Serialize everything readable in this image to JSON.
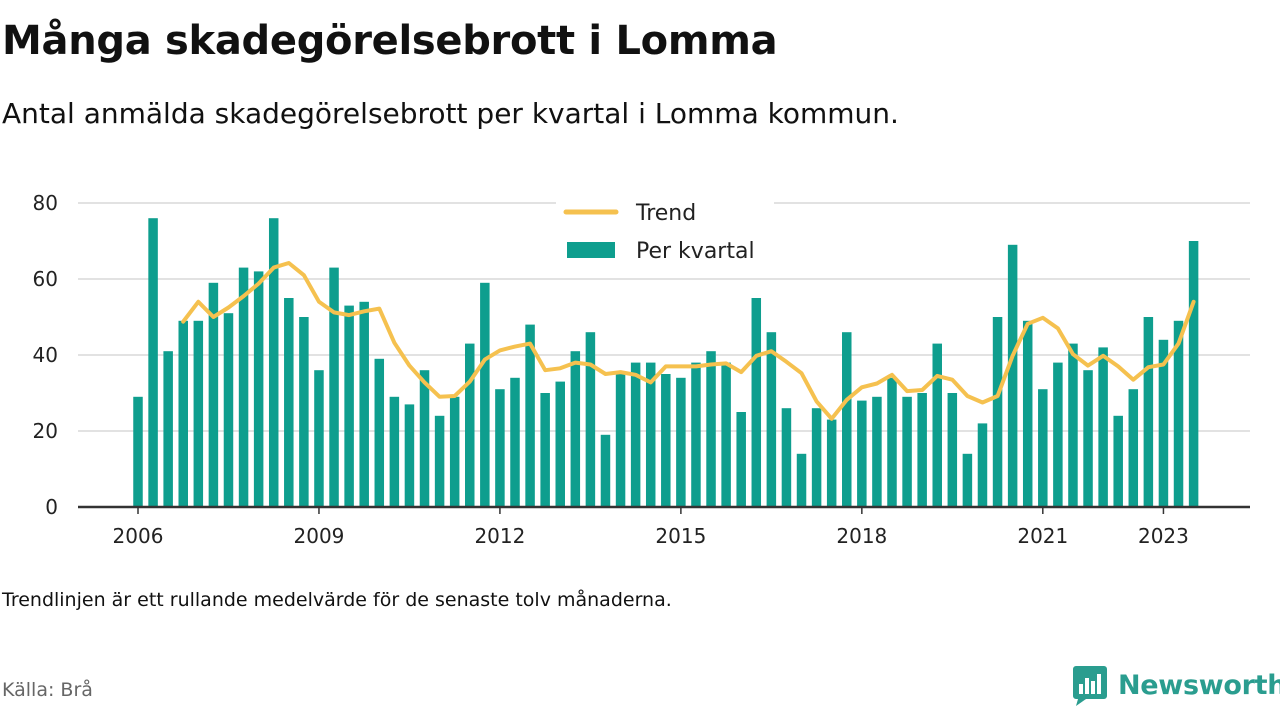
{
  "header": {
    "title": "Många skadegörelsebrott i Lomma",
    "subtitle": "Antal anmälda skadegörelsebrott per kvartal i Lomma kommun."
  },
  "footer": {
    "note": "Trendlinjen är ett rullande medelvärde för de senaste tolv månaderna.",
    "source": "Källa: Brå",
    "brand": "Newsworthy"
  },
  "colors": {
    "bars": "#0e9e8e",
    "trend": "#f5c14f",
    "grid": "#d9d9d9",
    "axis": "#333333",
    "brand": "#2a9d8f"
  },
  "icons": {
    "brand_logo": "newsworthy-logo-icon"
  },
  "chart_data": {
    "type": "bar",
    "title": "",
    "xlabel": "",
    "ylabel": "",
    "ylim": [
      0,
      80
    ],
    "yticks": [
      "0",
      "20",
      "40",
      "60",
      "80"
    ],
    "xticks": [
      "2006",
      "2009",
      "2012",
      "2015",
      "2018",
      "2021",
      "2023"
    ],
    "grid": true,
    "legend_position": "top-center",
    "categories": [
      "2006 Q1",
      "2006 Q2",
      "2006 Q3",
      "2006 Q4",
      "2007 Q1",
      "2007 Q2",
      "2007 Q3",
      "2007 Q4",
      "2008 Q1",
      "2008 Q2",
      "2008 Q3",
      "2008 Q4",
      "2009 Q1",
      "2009 Q2",
      "2009 Q3",
      "2009 Q4",
      "2010 Q1",
      "2010 Q2",
      "2010 Q3",
      "2010 Q4",
      "2011 Q1",
      "2011 Q2",
      "2011 Q3",
      "2011 Q4",
      "2012 Q1",
      "2012 Q2",
      "2012 Q3",
      "2012 Q4",
      "2013 Q1",
      "2013 Q2",
      "2013 Q3",
      "2013 Q4",
      "2014 Q1",
      "2014 Q2",
      "2014 Q3",
      "2014 Q4",
      "2015 Q1",
      "2015 Q2",
      "2015 Q3",
      "2015 Q4",
      "2016 Q1",
      "2016 Q2",
      "2016 Q3",
      "2016 Q4",
      "2017 Q1",
      "2017 Q2",
      "2017 Q3",
      "2017 Q4",
      "2018 Q1",
      "2018 Q2",
      "2018 Q3",
      "2018 Q4",
      "2019 Q1",
      "2019 Q2",
      "2019 Q3",
      "2019 Q4",
      "2020 Q1",
      "2020 Q2",
      "2020 Q3",
      "2020 Q4",
      "2021 Q1",
      "2021 Q2",
      "2021 Q3",
      "2021 Q4",
      "2022 Q1",
      "2022 Q2",
      "2022 Q3",
      "2022 Q4",
      "2023 Q1",
      "2023 Q2",
      "2023 Q3"
    ],
    "series": [
      {
        "name": "Per kvartal",
        "type": "bar",
        "values": [
          29,
          76,
          41,
          49,
          49,
          59,
          51,
          63,
          62,
          76,
          55,
          50,
          36,
          63,
          53,
          54,
          39,
          29,
          27,
          36,
          24,
          29,
          43,
          59,
          31,
          34,
          48,
          30,
          33,
          41,
          46,
          19,
          35,
          38,
          38,
          35,
          34,
          38,
          41,
          38,
          25,
          55,
          46,
          26,
          14,
          26,
          23,
          46,
          28,
          29,
          34,
          29,
          30,
          43,
          30,
          14,
          22,
          50,
          69,
          49,
          31,
          38,
          43,
          36,
          42,
          24,
          31,
          50,
          44,
          49,
          70
        ]
      },
      {
        "name": "Trend",
        "type": "line",
        "values": [
          null,
          null,
          null,
          48.8,
          54,
          50,
          52.5,
          55.5,
          58.8,
          63,
          64.2,
          61,
          54,
          51.2,
          50.5,
          51.5,
          52.2,
          43.2,
          37.2,
          32.8,
          29,
          29.2,
          33,
          38.8,
          41.2,
          42.2,
          43,
          36,
          36.5,
          38,
          37.5,
          35,
          35.5,
          34.8,
          32.8,
          37,
          37,
          37,
          37.5,
          37.8,
          35.5,
          39.8,
          41,
          38.2,
          35.2,
          27.8,
          23.2,
          28.2,
          31.5,
          32.5,
          34.8,
          30.5,
          30.8,
          34.5,
          33.5,
          29.2,
          27.5,
          29.2,
          39.8,
          48.2,
          49.8,
          47,
          40.2,
          37.2,
          39.8,
          37,
          33.5,
          36.8,
          37.5,
          43,
          54
        ]
      }
    ]
  }
}
